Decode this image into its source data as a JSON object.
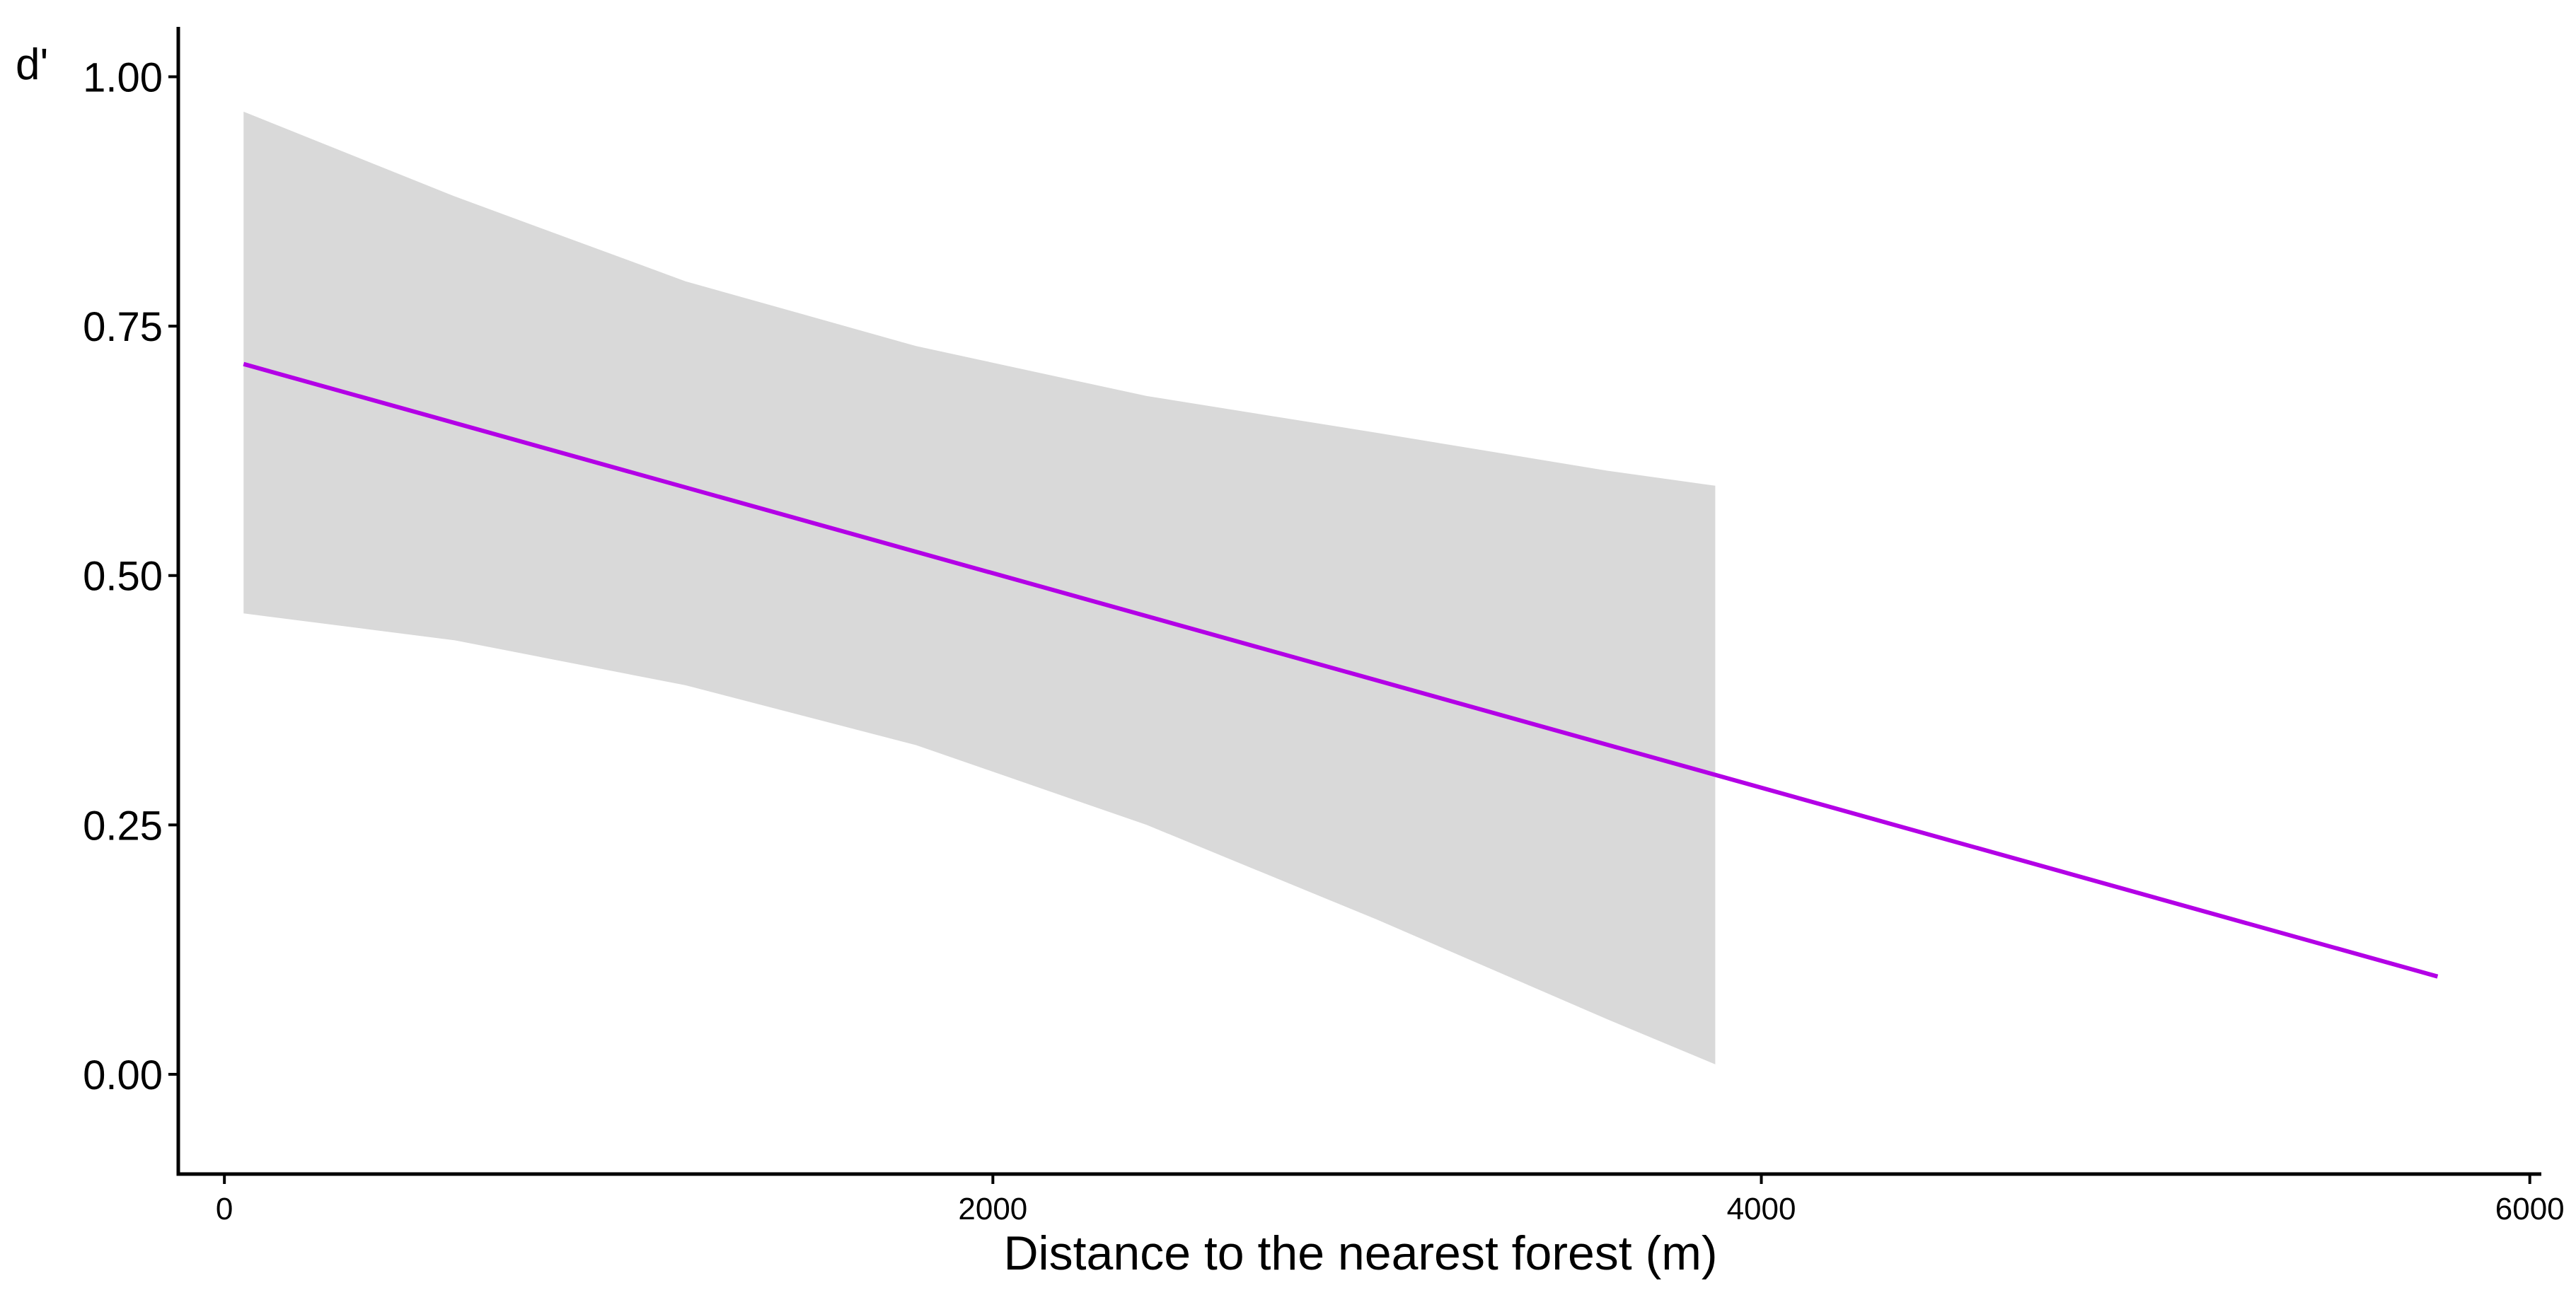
{
  "chart_data": {
    "type": "line",
    "title": "",
    "xlabel": "Distance to the nearest forest (m)",
    "ylabel": "d'",
    "xlim": [
      -120,
      6030
    ],
    "ylim": [
      -0.1,
      1.05
    ],
    "x_ticks": [
      0,
      2000,
      4000,
      6000
    ],
    "x_tick_labels": [
      "0",
      "2000",
      "4000",
      "6000"
    ],
    "y_ticks": [
      0,
      0.25,
      0.5,
      0.75,
      1.0
    ],
    "y_tick_labels": [
      "0.00",
      "0.25",
      "0.50",
      "0.75",
      "1.00"
    ],
    "grid": false,
    "legend": "none",
    "series": [
      {
        "x": [
          50,
          5760
        ],
        "y": [
          0.712,
          0.098
        ],
        "color": "#B300E6"
      }
    ],
    "confidence_band": {
      "color": "#D9D9D9",
      "x": [
        50,
        600,
        1200,
        1800,
        2400,
        3000,
        3600,
        3880
      ],
      "upper": [
        0.965,
        0.88,
        0.795,
        0.73,
        0.68,
        0.643,
        0.605,
        0.59
      ],
      "lower": [
        0.462,
        0.435,
        0.39,
        0.33,
        0.25,
        0.155,
        0.055,
        0.01
      ]
    }
  }
}
